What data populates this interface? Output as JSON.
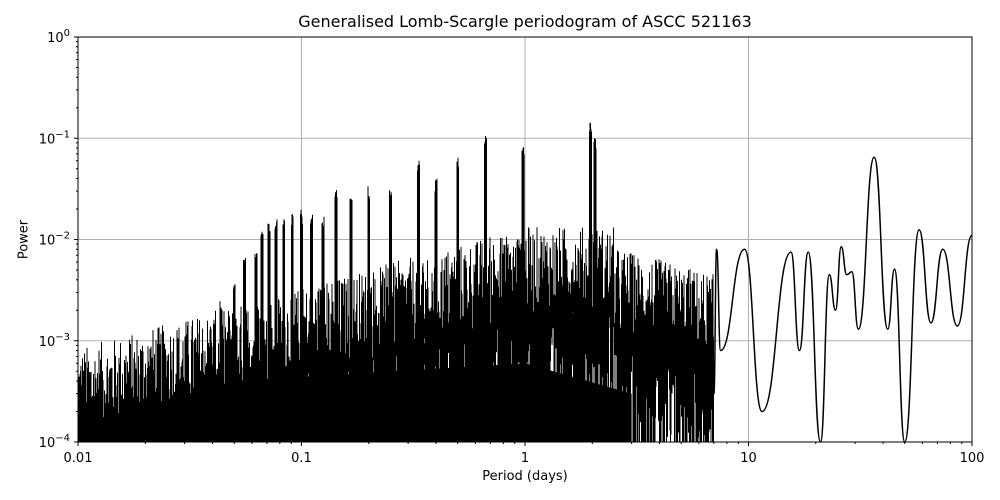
{
  "chart_data": {
    "type": "line",
    "title": "Generalised Lomb-Scargle periodogram of ASCC 521163",
    "xlabel": "Period (days)",
    "ylabel": "Power",
    "xscale": "log",
    "yscale": "log",
    "xlim": [
      0.01,
      100
    ],
    "ylim": [
      0.0001,
      1
    ],
    "grid": true,
    "x_ticks": [
      {
        "value": 0.01,
        "label": "0.01"
      },
      {
        "value": 0.1,
        "label": "0.1"
      },
      {
        "value": 1,
        "label": "1"
      },
      {
        "value": 10,
        "label": "10"
      },
      {
        "value": 100,
        "label": "100"
      }
    ],
    "y_ticks": [
      {
        "value": 0.0001,
        "base": "10",
        "exp": "−4"
      },
      {
        "value": 0.001,
        "base": "10",
        "exp": "−3"
      },
      {
        "value": 0.01,
        "base": "10",
        "exp": "−2"
      },
      {
        "value": 0.1,
        "base": "10",
        "exp": "−1"
      },
      {
        "value": 1,
        "base": "10",
        "exp": "0"
      }
    ],
    "line_color": "#000000",
    "grid_color": "#b0b0b0",
    "alias_peaks": [
      {
        "period": 0.0385,
        "power": 0.0011
      },
      {
        "period": 0.0435,
        "power": 0.0025
      },
      {
        "period": 0.05,
        "power": 0.0042
      },
      {
        "period": 0.0555,
        "power": 0.007
      },
      {
        "period": 0.0625,
        "power": 0.0085
      },
      {
        "period": 0.0667,
        "power": 0.013
      },
      {
        "period": 0.0714,
        "power": 0.0155
      },
      {
        "period": 0.0769,
        "power": 0.0165
      },
      {
        "period": 0.0833,
        "power": 0.017
      },
      {
        "period": 0.0909,
        "power": 0.018
      },
      {
        "period": 0.1,
        "power": 0.02
      },
      {
        "period": 0.111,
        "power": 0.018
      },
      {
        "period": 0.125,
        "power": 0.0175
      },
      {
        "period": 0.1429,
        "power": 0.032
      },
      {
        "period": 0.1667,
        "power": 0.027
      },
      {
        "period": 0.2,
        "power": 0.036
      },
      {
        "period": 0.25,
        "power": 0.034
      },
      {
        "period": 0.3333,
        "power": 0.06
      },
      {
        "period": 0.4,
        "power": 0.04
      },
      {
        "period": 0.5,
        "power": 0.065
      },
      {
        "period": 0.6667,
        "power": 0.11
      },
      {
        "period": 0.98,
        "power": 0.095
      },
      {
        "period": 1.96,
        "power": 0.155
      },
      {
        "period": 2.06,
        "power": 0.1
      }
    ],
    "long_period_curve": [
      {
        "period": 7.0,
        "power": 0.0003
      },
      {
        "period": 7.2,
        "power": 0.008
      },
      {
        "period": 7.5,
        "power": 0.0008
      },
      {
        "period": 9.6,
        "power": 0.008
      },
      {
        "period": 11.5,
        "power": 0.0002
      },
      {
        "period": 15.5,
        "power": 0.0075
      },
      {
        "period": 16.9,
        "power": 0.0008
      },
      {
        "period": 18.5,
        "power": 0.0075
      },
      {
        "period": 21.0,
        "power": 0.0001
      },
      {
        "period": 23.0,
        "power": 0.0045
      },
      {
        "period": 24.5,
        "power": 0.002
      },
      {
        "period": 26.0,
        "power": 0.0085
      },
      {
        "period": 27.5,
        "power": 0.0045
      },
      {
        "period": 29.0,
        "power": 0.0048
      },
      {
        "period": 31.0,
        "power": 0.0013
      },
      {
        "period": 36.5,
        "power": 0.065
      },
      {
        "period": 42.0,
        "power": 0.0013
      },
      {
        "period": 45.0,
        "power": 0.0051
      },
      {
        "period": 50.0,
        "power": 0.0001
      },
      {
        "period": 58.0,
        "power": 0.0125
      },
      {
        "period": 65.5,
        "power": 0.0015
      },
      {
        "period": 74.0,
        "power": 0.008
      },
      {
        "period": 86.0,
        "power": 0.0014
      },
      {
        "period": 100.0,
        "power": 0.011
      }
    ]
  }
}
